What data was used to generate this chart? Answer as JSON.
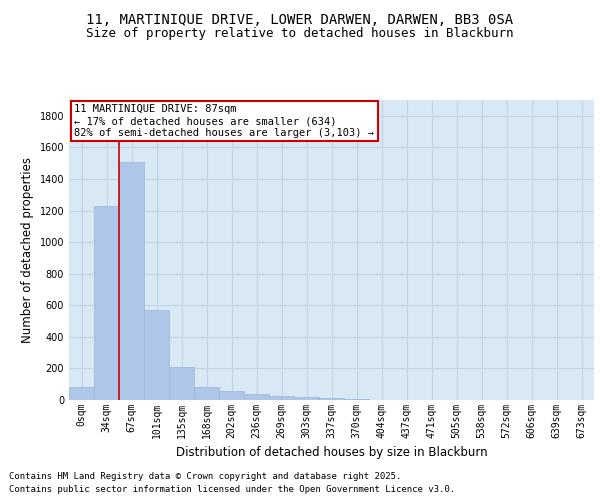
{
  "title_line1": "11, MARTINIQUE DRIVE, LOWER DARWEN, DARWEN, BB3 0SA",
  "title_line2": "Size of property relative to detached houses in Blackburn",
  "xlabel": "Distribution of detached houses by size in Blackburn",
  "ylabel": "Number of detached properties",
  "bar_labels": [
    "0sqm",
    "34sqm",
    "67sqm",
    "101sqm",
    "135sqm",
    "168sqm",
    "202sqm",
    "236sqm",
    "269sqm",
    "303sqm",
    "337sqm",
    "370sqm",
    "404sqm",
    "437sqm",
    "471sqm",
    "505sqm",
    "538sqm",
    "572sqm",
    "606sqm",
    "639sqm",
    "673sqm"
  ],
  "bar_values": [
    80,
    1230,
    1510,
    570,
    210,
    80,
    55,
    38,
    25,
    16,
    10,
    4,
    2,
    1,
    0,
    0,
    0,
    0,
    0,
    0,
    0
  ],
  "bar_color": "#aec6e8",
  "bar_edge_color": "#9ab8d8",
  "vline_x": 1.5,
  "vline_color": "#cc0000",
  "annotation_text": "11 MARTINIQUE DRIVE: 87sqm\n← 17% of detached houses are smaller (634)\n82% of semi-detached houses are larger (3,103) →",
  "annotation_box_edgecolor": "#cc0000",
  "annotation_facecolor": "white",
  "ylim": [
    0,
    1900
  ],
  "yticks": [
    0,
    200,
    400,
    600,
    800,
    1000,
    1200,
    1400,
    1600,
    1800
  ],
  "grid_color": "#c0d4e8",
  "plot_bg_color": "#d8e8f4",
  "footer_line1": "Contains HM Land Registry data © Crown copyright and database right 2025.",
  "footer_line2": "Contains public sector information licensed under the Open Government Licence v3.0.",
  "title_fontsize": 10,
  "subtitle_fontsize": 9,
  "axis_label_fontsize": 8.5,
  "tick_fontsize": 7,
  "annotation_fontsize": 7.5,
  "footer_fontsize": 6.5
}
